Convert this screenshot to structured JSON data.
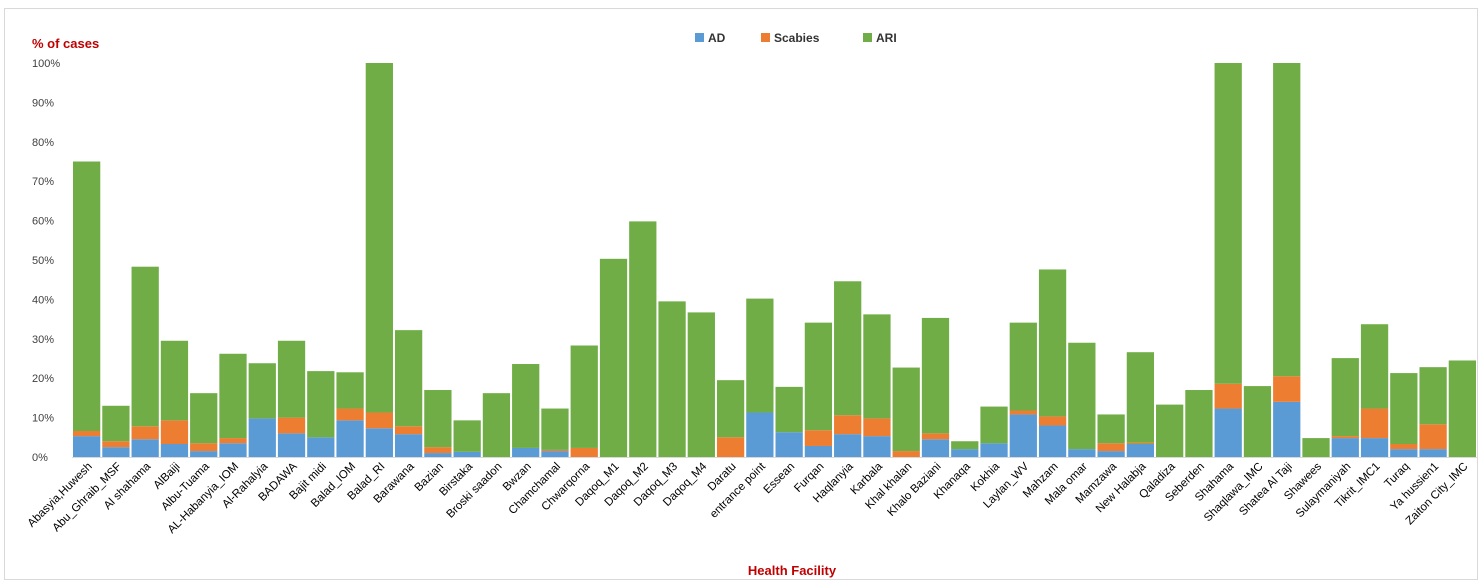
{
  "chart_data": {
    "type": "bar",
    "stacked": true,
    "ylabel": "% of cases",
    "xlabel": "Health Facility",
    "ylim": [
      0,
      100
    ],
    "yticks": [
      "0%",
      "10%",
      "20%",
      "30%",
      "40%",
      "50%",
      "60%",
      "70%",
      "80%",
      "90%",
      "100%"
    ],
    "legend_position": "top-center",
    "grid": false,
    "categories": [
      "Abasyia,Huwesh",
      "Abu_Ghraib_MSF",
      "Al shahama",
      "AlBaiji",
      "Albu-Tuama",
      "AL-Habanyia_IOM",
      "Al-Rahalyia",
      "BADAWA",
      "Bajit midi",
      "Balad_IOM",
      "Balad_RI",
      "Barawana",
      "Bazian",
      "Birstaka",
      "Broski saadon",
      "Bwzan",
      "Chamchamal",
      "Chwarqorna",
      "Daqoq_M1",
      "Daqoq_M2",
      "Daqoq_M3",
      "Daqoq_M4",
      "Daratu",
      "entrance point",
      "Essean",
      "Furqan",
      "Haqlanyia",
      "Karbala",
      "Khal khalan",
      "Khalo Baziani",
      "Khanaqa",
      "Kokhia",
      "Laylan_WV",
      "Mahzam",
      "Mala omar",
      "Mamzawa",
      "New Halabja",
      "Qaladiza",
      "Seberden",
      "Shahama",
      "Shaqlawa_IMC",
      "Shatea Al Taji",
      "Shawees",
      "Sulaymaniyah",
      "Tikrit_IMC1",
      "Turaq",
      "Ya hussien1",
      "Zaiton City_IMC"
    ],
    "series": [
      {
        "name": "AD",
        "color": "#5b9bd5",
        "values": [
          5.3,
          2.5,
          4.5,
          3.3,
          1.5,
          3.5,
          9.8,
          6.0,
          5.0,
          9.3,
          7.3,
          5.8,
          1.0,
          1.3,
          0,
          2.3,
          1.5,
          0,
          0,
          0,
          0,
          0,
          0,
          11.3,
          6.3,
          2.8,
          5.8,
          5.3,
          0,
          4.5,
          2.0,
          3.5,
          10.8,
          8.0,
          2.0,
          1.5,
          3.3,
          0,
          0,
          12.3,
          0,
          14.0,
          0,
          4.8,
          4.8,
          2.0,
          2.0,
          0
        ]
      },
      {
        "name": "Scabies",
        "color": "#ed7d31",
        "values": [
          1.3,
          1.5,
          3.3,
          6.0,
          2.0,
          1.3,
          0,
          4.0,
          0,
          3.0,
          4.0,
          2.0,
          1.5,
          0,
          0,
          0,
          0.3,
          2.3,
          0,
          0,
          0,
          0,
          5.0,
          0,
          0,
          4.0,
          4.8,
          4.5,
          1.5,
          1.5,
          0,
          0,
          1.0,
          2.3,
          0,
          2.0,
          0.3,
          0,
          0,
          6.3,
          0,
          6.5,
          0,
          0.5,
          7.5,
          1.3,
          6.3,
          0
        ]
      },
      {
        "name": "ARI",
        "color": "#70ad47",
        "values": [
          68.4,
          9.0,
          40.5,
          20.2,
          12.7,
          21.4,
          14.0,
          19.5,
          16.8,
          9.2,
          88.7,
          24.4,
          14.5,
          8.0,
          16.2,
          21.3,
          10.5,
          26.0,
          50.3,
          59.8,
          39.5,
          36.7,
          14.5,
          28.9,
          11.5,
          27.3,
          34.0,
          26.4,
          21.2,
          29.3,
          2.0,
          9.3,
          22.3,
          37.3,
          27.0,
          7.3,
          23.0,
          13.3,
          17.0,
          81.4,
          18.0,
          79.5,
          4.8,
          19.8,
          21.4,
          18.0,
          14.5,
          24.5
        ]
      }
    ]
  }
}
